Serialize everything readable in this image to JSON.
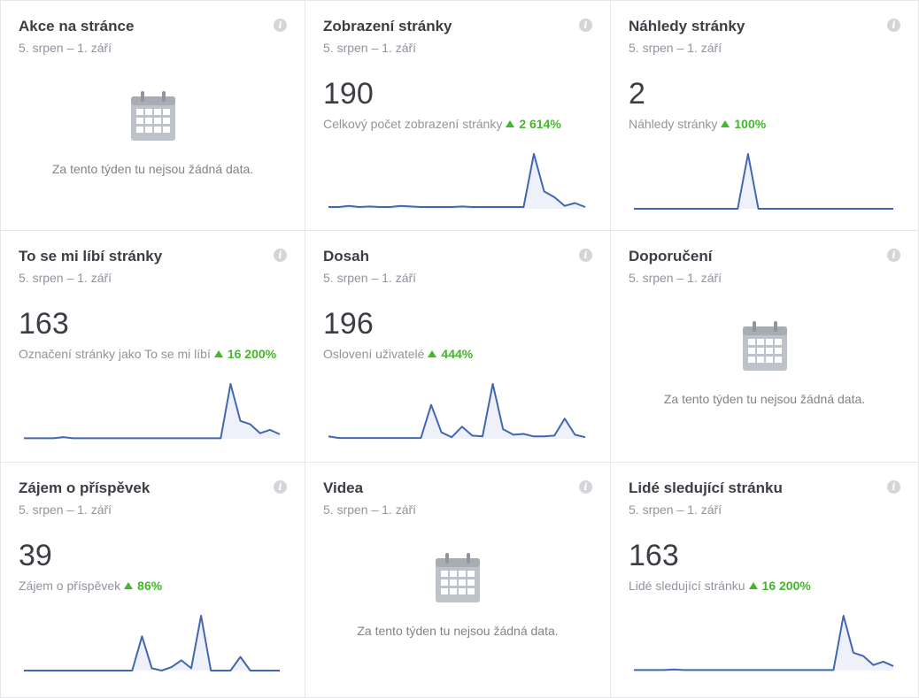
{
  "cards": [
    {
      "title": "Akce na stránce",
      "range": "5. srpen – 1. září",
      "empty_text": "Za tento týden tu nejsou žádná data.",
      "info_icon": "i"
    },
    {
      "title": "Zobrazení stránky",
      "range": "5. srpen – 1. září",
      "value": "190",
      "sub_label": "Celkový počet zobrazení stránky",
      "change": "2 614%",
      "info_icon": "i",
      "series": [
        0.3,
        0.3,
        0.5,
        0.3,
        0.4,
        0.3,
        0.3,
        0.5,
        0.4,
        0.3,
        0.3,
        0.3,
        0.3,
        0.4,
        0.3,
        0.3,
        0.3,
        0.3,
        0.3,
        0.3,
        9.5,
        3.0,
        2.0,
        0.5,
        1.0,
        0.3
      ]
    },
    {
      "title": "Náhledy stránky",
      "range": "5. srpen – 1. září",
      "value": "2",
      "sub_label": "Náhledy stránky",
      "change": "100%",
      "info_icon": "i",
      "series": [
        0,
        0,
        0,
        0,
        0,
        0,
        0,
        0,
        0,
        0,
        0,
        1,
        0,
        0,
        0,
        0,
        0,
        0,
        0,
        0,
        0,
        0,
        0,
        0,
        0,
        0
      ]
    },
    {
      "title": "To se mi líbí stránky",
      "range": "5. srpen – 1. září",
      "value": "163",
      "sub_label": "Označení stránky jako To se mi líbí",
      "change": "16 200%",
      "info_icon": "i",
      "series": [
        0.1,
        0.1,
        0.1,
        0.1,
        0.3,
        0.1,
        0.1,
        0.1,
        0.1,
        0.1,
        0.1,
        0.1,
        0.1,
        0.1,
        0.1,
        0.1,
        0.1,
        0.1,
        0.1,
        0.1,
        0.1,
        9.8,
        3.2,
        2.6,
        1.0,
        1.6,
        0.8
      ]
    },
    {
      "title": "Dosah",
      "range": "5. srpen – 1. září",
      "value": "196",
      "sub_label": "Oslovení uživatelé",
      "change": "444%",
      "info_icon": "i",
      "series": [
        0.3,
        0.1,
        0.1,
        0.1,
        0.1,
        0.1,
        0.1,
        0.1,
        0.1,
        0.1,
        4.2,
        0.8,
        0.2,
        1.5,
        0.4,
        0.3,
        6.8,
        1.2,
        0.5,
        0.6,
        0.3,
        0.3,
        0.4,
        2.5,
        0.5,
        0.2
      ]
    },
    {
      "title": "Doporučení",
      "range": "5. srpen – 1. září",
      "empty_text": "Za tento týden tu nejsou žádná data.",
      "info_icon": "i"
    },
    {
      "title": "Zájem o příspěvek",
      "range": "5. srpen – 1. září",
      "value": "39",
      "sub_label": "Zájem o příspěvek",
      "change": "86%",
      "info_icon": "i",
      "series": [
        0,
        0,
        0,
        0,
        0,
        0,
        0,
        0,
        0,
        0,
        0,
        0,
        3.0,
        0.2,
        0,
        0.3,
        0.9,
        0.2,
        4.8,
        0,
        0,
        0,
        1.2,
        0,
        0,
        0,
        0
      ]
    },
    {
      "title": "Videa",
      "range": "5. srpen – 1. září",
      "empty_text": "Za tento týden tu nejsou žádná data.",
      "info_icon": "i"
    },
    {
      "title": "Lidé sledující stránku",
      "range": "5. srpen – 1. září",
      "value": "163",
      "sub_label": "Lidé sledující stránku",
      "change": "16 200%",
      "info_icon": "i",
      "series": [
        0.1,
        0.1,
        0.1,
        0.1,
        0.2,
        0.1,
        0.1,
        0.1,
        0.1,
        0.1,
        0.1,
        0.1,
        0.1,
        0.1,
        0.1,
        0.1,
        0.1,
        0.1,
        0.1,
        0.1,
        0.1,
        9.8,
        3.2,
        2.6,
        1.0,
        1.6,
        0.8
      ]
    }
  ],
  "colors": {
    "line": "#4267b2",
    "fill": "#eef1f9",
    "positive": "#42b72a"
  }
}
